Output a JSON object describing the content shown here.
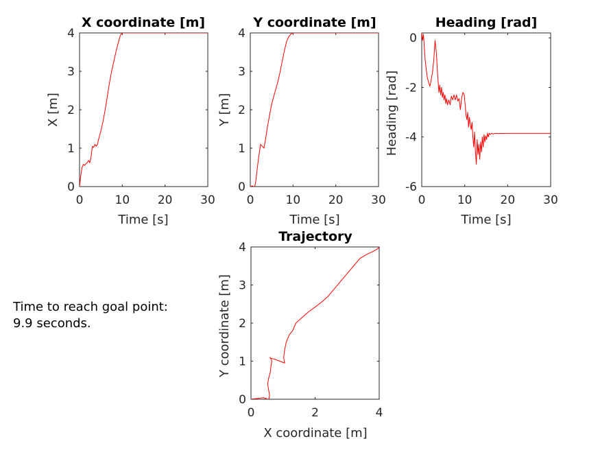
{
  "annotation": {
    "line1": "Time to reach goal point:",
    "line2": "9.9 seconds."
  },
  "colors": {
    "series": "#ff0000",
    "axes": "#262626"
  },
  "chart_data": [
    {
      "id": "x",
      "type": "line",
      "title": "X coordinate [m]",
      "xlabel": "Time [s]",
      "ylabel": "X [m]",
      "xlim": [
        0,
        30
      ],
      "ylim": [
        0,
        4
      ],
      "xticks": [
        0,
        10,
        20,
        30
      ],
      "yticks": [
        0,
        1,
        2,
        3,
        4
      ],
      "series": [
        {
          "x": [
            0,
            0.3,
            0.6,
            0.9,
            1.2,
            1.5,
            1.8,
            2.1,
            2.4,
            2.7,
            3.0,
            3.3,
            3.6,
            3.9,
            4.2,
            4.5,
            5.0,
            5.5,
            6.0,
            6.5,
            7.0,
            7.5,
            8.0,
            8.5,
            9.0,
            9.5,
            9.9,
            10.5,
            12,
            15,
            20,
            25,
            30
          ],
          "y": [
            0,
            0.3,
            0.5,
            0.58,
            0.55,
            0.6,
            0.62,
            0.68,
            0.62,
            0.78,
            1.05,
            1.02,
            1.1,
            1.05,
            1.1,
            1.25,
            1.45,
            1.7,
            2.0,
            2.35,
            2.7,
            3.0,
            3.25,
            3.5,
            3.72,
            3.92,
            4.0,
            4.0,
            4.0,
            4.0,
            4.0,
            4.0,
            4.0
          ]
        }
      ]
    },
    {
      "id": "y",
      "type": "line",
      "title": "Y coordinate [m]",
      "xlabel": "Time [s]",
      "ylabel": "Y [m]",
      "xlim": [
        0,
        30
      ],
      "ylim": [
        0,
        4
      ],
      "xticks": [
        0,
        10,
        20,
        30
      ],
      "yticks": [
        0,
        1,
        2,
        3,
        4
      ],
      "series": [
        {
          "x": [
            0,
            0.5,
            1.0,
            1.3,
            1.6,
            2.0,
            2.4,
            2.8,
            3.2,
            3.6,
            4.0,
            4.5,
            5.0,
            5.5,
            6.0,
            6.5,
            7.0,
            7.5,
            8.0,
            8.5,
            9.0,
            9.5,
            9.9,
            10.5,
            12,
            15,
            20,
            25,
            30
          ],
          "y": [
            0,
            0.02,
            -0.03,
            0.15,
            0.45,
            0.8,
            1.1,
            1.05,
            1.0,
            1.25,
            1.55,
            1.85,
            2.15,
            2.35,
            2.55,
            2.75,
            3.0,
            3.28,
            3.55,
            3.78,
            3.9,
            3.97,
            4.0,
            4.0,
            4.0,
            4.0,
            4.0,
            4.0,
            4.0
          ]
        }
      ]
    },
    {
      "id": "heading",
      "type": "line",
      "title": "Heading [rad]",
      "xlabel": "Time [s]",
      "ylabel": "Heading [rad]",
      "xlim": [
        0,
        30
      ],
      "ylim": [
        -6,
        0.2
      ],
      "xticks": [
        0,
        10,
        20,
        30
      ],
      "yticks": [
        -6,
        -4,
        -2,
        0
      ],
      "series": [
        {
          "x": [
            0,
            0.2,
            0.4,
            0.6,
            0.8,
            1.0,
            1.3,
            1.6,
            1.9,
            2.2,
            2.5,
            2.8,
            3.1,
            3.4,
            3.7,
            4.0,
            4.2,
            4.4,
            4.6,
            4.8,
            5.0,
            5.2,
            5.4,
            5.6,
            5.8,
            6.0,
            6.3,
            6.6,
            6.9,
            7.2,
            7.5,
            7.8,
            8.1,
            8.4,
            8.7,
            9.0,
            9.3,
            9.6,
            9.9,
            10.1,
            10.3,
            10.5,
            10.7,
            10.9,
            11.1,
            11.3,
            11.5,
            11.7,
            11.9,
            12.1,
            12.3,
            12.5,
            12.7,
            12.9,
            13.1,
            13.3,
            13.5,
            13.7,
            13.9,
            14.1,
            14.3,
            14.5,
            14.7,
            14.9,
            15.1,
            15.3,
            15.5,
            15.7,
            15.9,
            16.2,
            16.6,
            17.0,
            18,
            20,
            22,
            25,
            28,
            30
          ],
          "y": [
            0.2,
            -0.1,
            0.15,
            -0.4,
            -0.9,
            -1.2,
            -1.6,
            -1.8,
            -1.95,
            -1.7,
            -1.4,
            -0.9,
            -0.1,
            -0.6,
            -1.5,
            -2.2,
            -1.9,
            -2.3,
            -2.0,
            -2.4,
            -2.2,
            -2.5,
            -2.3,
            -2.65,
            -2.45,
            -2.7,
            -2.5,
            -2.7,
            -2.35,
            -2.5,
            -2.3,
            -2.5,
            -2.3,
            -2.55,
            -2.45,
            -2.9,
            -2.4,
            -2.2,
            -2.3,
            -2.7,
            -3.1,
            -3.3,
            -3.0,
            -3.6,
            -3.2,
            -3.5,
            -3.7,
            -3.4,
            -4.0,
            -4.4,
            -3.8,
            -4.6,
            -5.1,
            -4.1,
            -4.7,
            -4.3,
            -4.9,
            -4.2,
            -4.6,
            -4.0,
            -4.4,
            -3.9,
            -4.2,
            -3.95,
            -4.1,
            -3.85,
            -4.0,
            -3.85,
            -3.9,
            -3.85,
            -3.88,
            -3.85,
            -3.86,
            -3.85,
            -3.85,
            -3.85,
            -3.85,
            -3.85
          ]
        }
      ]
    },
    {
      "id": "trajectory",
      "type": "line",
      "title": "Trajectory",
      "xlabel": "X coordinate [m]",
      "ylabel": "Y coordinate [m]",
      "xlim": [
        0,
        4
      ],
      "ylim": [
        0,
        4
      ],
      "xticks": [
        0,
        2,
        4
      ],
      "yticks": [
        0,
        1,
        2,
        3,
        4
      ],
      "series": [
        {
          "x": [
            0.0,
            0.2,
            0.38,
            0.48,
            0.55,
            0.58,
            0.55,
            0.52,
            0.55,
            0.6,
            0.62,
            0.65,
            0.6,
            0.6,
            0.75,
            0.9,
            1.05,
            1.02,
            1.05,
            1.1,
            1.2,
            1.3,
            1.4,
            1.6,
            1.8,
            2.0,
            2.2,
            2.4,
            2.6,
            2.8,
            3.0,
            3.2,
            3.4,
            3.6,
            3.8,
            3.95,
            4.0
          ],
          "y": [
            0.0,
            0.02,
            0.04,
            0.02,
            -0.03,
            0.1,
            0.25,
            0.4,
            0.55,
            0.7,
            0.85,
            1.0,
            1.1,
            1.08,
            1.05,
            1.0,
            0.95,
            1.1,
            1.3,
            1.5,
            1.7,
            1.8,
            2.0,
            2.15,
            2.3,
            2.42,
            2.55,
            2.7,
            2.9,
            3.1,
            3.3,
            3.5,
            3.7,
            3.8,
            3.88,
            3.95,
            4.0
          ]
        }
      ]
    }
  ]
}
